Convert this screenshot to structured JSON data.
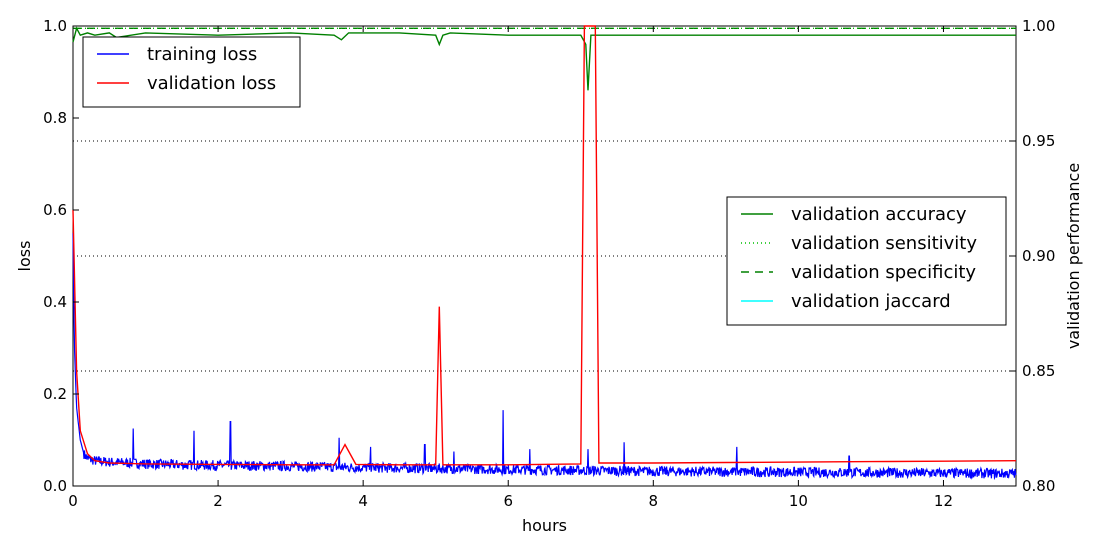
{
  "chart_data": {
    "type": "line",
    "xlabel": "hours",
    "ylabel_left": "loss",
    "ylabel_right": "validation performance",
    "xlim": [
      0,
      13
    ],
    "ylim_left": [
      0.0,
      1.0
    ],
    "ylim_right": [
      0.8,
      1.0
    ],
    "x_ticks": [
      "0",
      "2",
      "4",
      "6",
      "8",
      "10",
      "12"
    ],
    "y_ticks_left": [
      "0.0",
      "0.2",
      "0.4",
      "0.6",
      "0.8",
      "1.0"
    ],
    "y_ticks_right": [
      "0.80",
      "0.85",
      "0.90",
      "0.95",
      "1.00"
    ],
    "grid": "dotted horizontal lines at right-axis ticks",
    "legend_left_position": "top-left",
    "legend_right_position": "center-right",
    "colors": {
      "training_loss": "#0000ff",
      "validation_loss": "#ff0000",
      "validation_accuracy": "#008000",
      "validation_sensitivity": "#00bf00",
      "validation_specificity": "#008000",
      "validation_jaccard": "#00ffff"
    },
    "series": [
      {
        "name": "training loss",
        "axis": "left",
        "style": "solid",
        "x": [
          0,
          0.02,
          0.05,
          0.1,
          0.15,
          0.2,
          0.3,
          0.5,
          0.8,
          1,
          1.5,
          2,
          3,
          4,
          5,
          6,
          7,
          8,
          9,
          10,
          11,
          12,
          13
        ],
        "y": [
          0.55,
          0.3,
          0.17,
          0.1,
          0.07,
          0.06,
          0.055,
          0.052,
          0.05,
          0.048,
          0.046,
          0.045,
          0.043,
          0.04,
          0.038,
          0.036,
          0.034,
          0.032,
          0.031,
          0.03,
          0.029,
          0.028,
          0.027
        ],
        "spikes": [
          [
            0.83,
            0.125
          ],
          [
            1.67,
            0.12
          ],
          [
            2.17,
            0.14
          ],
          [
            3.67,
            0.105
          ],
          [
            4.1,
            0.085
          ],
          [
            4.85,
            0.09
          ],
          [
            5.25,
            0.075
          ],
          [
            5.93,
            0.165
          ],
          [
            6.3,
            0.08
          ],
          [
            7.1,
            0.08
          ],
          [
            7.6,
            0.095
          ],
          [
            9.15,
            0.085
          ],
          [
            10.7,
            0.065
          ]
        ]
      },
      {
        "name": "validation loss",
        "axis": "left",
        "style": "solid",
        "x": [
          0,
          0.05,
          0.1,
          0.2,
          0.3,
          0.5,
          1,
          2,
          3,
          3.6,
          3.75,
          3.9,
          4.5,
          5,
          5.05,
          5.1,
          5.2,
          6,
          7,
          7.05,
          7.1,
          7.2,
          7.25,
          8,
          9,
          10,
          11,
          12,
          13
        ],
        "y": [
          0.6,
          0.25,
          0.12,
          0.07,
          0.055,
          0.05,
          0.048,
          0.047,
          0.046,
          0.046,
          0.09,
          0.047,
          0.046,
          0.046,
          0.39,
          0.046,
          0.046,
          0.046,
          0.048,
          1.0,
          1.0,
          1.0,
          0.05,
          0.05,
          0.051,
          0.052,
          0.053,
          0.054,
          0.055
        ]
      },
      {
        "name": "validation accuracy",
        "axis": "right",
        "style": "solid",
        "x": [
          0,
          0.05,
          0.1,
          0.2,
          0.3,
          0.5,
          0.6,
          1,
          2,
          3,
          3.6,
          3.7,
          3.8,
          4.5,
          5,
          5.05,
          5.1,
          5.2,
          6,
          7,
          7.07,
          7.1,
          7.14,
          7.2,
          7.3,
          8,
          9,
          10,
          11,
          12,
          13
        ],
        "y": [
          0.993,
          0.999,
          0.996,
          0.997,
          0.996,
          0.997,
          0.995,
          0.997,
          0.996,
          0.997,
          0.996,
          0.994,
          0.997,
          0.997,
          0.996,
          0.992,
          0.996,
          0.997,
          0.996,
          0.996,
          0.992,
          0.972,
          0.996,
          0.996,
          0.996,
          0.996,
          0.996,
          0.996,
          0.996,
          0.996,
          0.996
        ]
      },
      {
        "name": "validation sensitivity",
        "axis": "right",
        "style": "dotted",
        "x": [
          0,
          13
        ],
        "y": [
          0.999,
          0.999
        ]
      },
      {
        "name": "validation specificity",
        "axis": "right",
        "style": "dashed",
        "x": [
          0,
          13
        ],
        "y": [
          0.999,
          0.999
        ]
      },
      {
        "name": "validation jaccard",
        "axis": "right",
        "style": "solid",
        "x": [],
        "y": []
      }
    ]
  }
}
